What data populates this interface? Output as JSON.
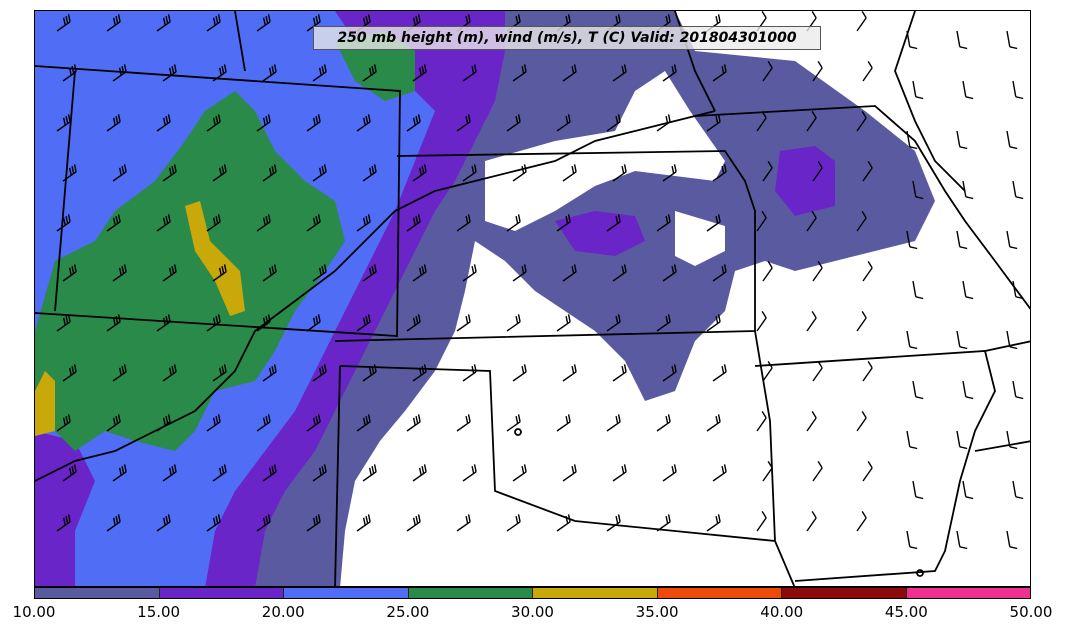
{
  "title": "250 mb height (m), wind (m/s), T (C) Valid: 201804301000",
  "colorbar": {
    "ticks": [
      "10.00",
      "15.00",
      "20.00",
      "25.00",
      "30.00",
      "35.00",
      "40.00",
      "45.00",
      "50.00"
    ],
    "colors": [
      "#5a5aa0",
      "#6a25c8",
      "#4f6df5",
      "#2a8a4a",
      "#c9a80a",
      "#ee4a0a",
      "#8c0a0a",
      "#f03090"
    ]
  },
  "legend_ranges": [
    {
      "min": 10,
      "max": 15,
      "color": "#5a5aa0"
    },
    {
      "min": 15,
      "max": 20,
      "color": "#6a25c8"
    },
    {
      "min": 20,
      "max": 25,
      "color": "#4f6df5"
    },
    {
      "min": 25,
      "max": 30,
      "color": "#2a8a4a"
    },
    {
      "min": 30,
      "max": 35,
      "color": "#c9a80a"
    },
    {
      "min": 35,
      "max": 40,
      "color": "#ee4a0a"
    },
    {
      "min": 40,
      "max": 45,
      "color": "#8c0a0a"
    },
    {
      "min": 45,
      "max": 50,
      "color": "#f03090"
    }
  ],
  "map": {
    "field": "250 mb wind speed shading (m/s)",
    "features": [
      "state-boundaries",
      "wind-barbs",
      "speed-shading"
    ]
  }
}
